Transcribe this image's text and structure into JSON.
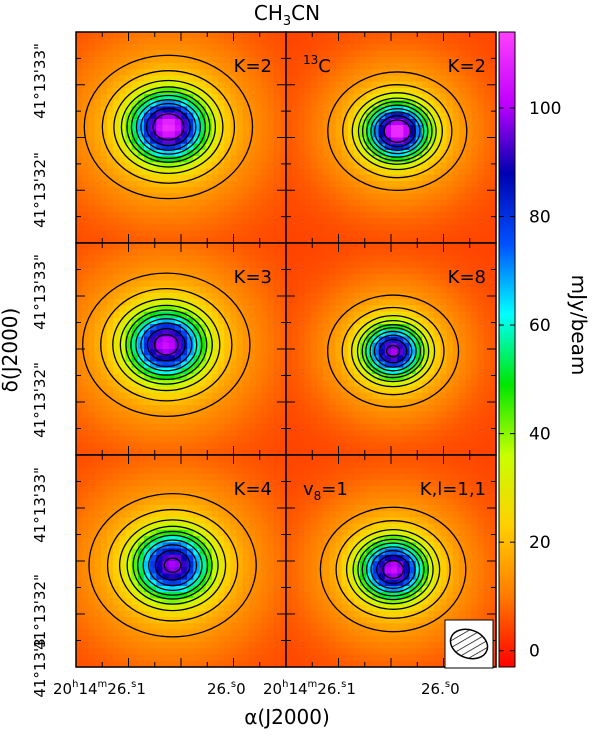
{
  "chart_data": {
    "type": "heatmap",
    "title": "CH3CN",
    "title_main": "CH",
    "title_sub": "3",
    "title_tail": "CN",
    "xlabel": "α(J2000)",
    "ylabel": "δ(J2000)",
    "colorbar": {
      "label": "mJy/beam",
      "range": [
        -3,
        114
      ],
      "ticks": [
        0,
        20,
        40,
        60,
        80,
        100
      ],
      "tick_labels": [
        "0",
        "20",
        "40",
        "60",
        "80",
        "100"
      ],
      "colors": [
        "#ff0000",
        "#ff7a00",
        "#ffd000",
        "#c8ff00",
        "#00e600",
        "#00ffff",
        "#0050ff",
        "#0000b0",
        "#c000ff",
        "#ff40ff"
      ]
    },
    "x_tick_labels": [
      {
        "pre": "20",
        "sup1": "h",
        "mid1": "14",
        "sup2": "m",
        "mid2": "26.",
        "sup3": "s",
        "tail": "1"
      },
      {
        "pre": "26.",
        "sup1": "s",
        "tail": "0"
      }
    ],
    "y_tick_labels": [
      "41°13'33\"",
      "41°13'32\"",
      "41°13'33\"",
      "41°13'32\"",
      "41°13'33\"",
      "41°13'32\""
    ],
    "y_tick_label_bottom": "41°13'3",
    "panels": [
      {
        "label": "K=2",
        "note": "",
        "peak": 111,
        "center": [
          0.44,
          0.45
        ],
        "cloud_extent": 1.15
      },
      {
        "label": "K=2",
        "note": "13C",
        "note_sup": "13",
        "note_main": "C",
        "peak": 112,
        "center": [
          0.53,
          0.47
        ],
        "cloud_extent": 0.95
      },
      {
        "label": "K=3",
        "note": "",
        "peak": 104,
        "center": [
          0.43,
          0.48
        ],
        "cloud_extent": 1.15
      },
      {
        "label": "K=8",
        "note": "",
        "peak": 100,
        "center": [
          0.51,
          0.51
        ],
        "cloud_extent": 0.9
      },
      {
        "label": "K=4",
        "note": "",
        "peak": 100,
        "center": [
          0.46,
          0.52
        ],
        "cloud_extent": 1.15
      },
      {
        "label": "K,l=1,1",
        "note": "v8=1",
        "note_main": "v",
        "note_sub": "8",
        "note_tail": "=1",
        "peak": 104,
        "center": [
          0.51,
          0.54
        ],
        "cloud_extent": 1.0
      }
    ],
    "beam": {
      "shape": "ellipse",
      "hatched": true
    }
  }
}
